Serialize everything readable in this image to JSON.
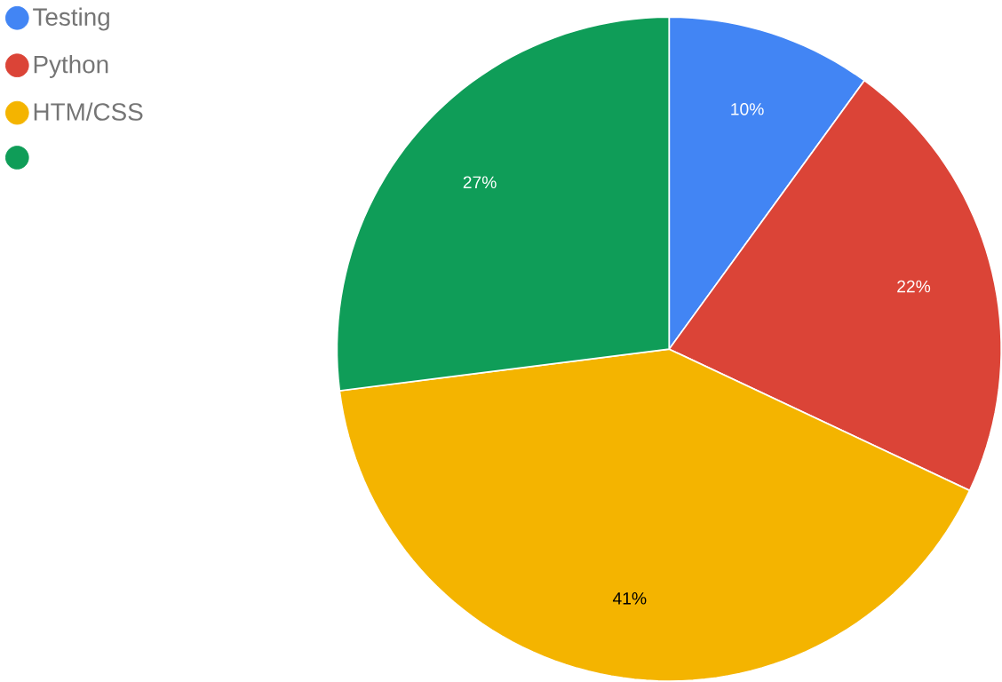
{
  "chart_data": {
    "type": "pie",
    "categories": [
      "Testing",
      "Python",
      "HTM/CSS",
      null
    ],
    "values": [
      10,
      22,
      41,
      27
    ],
    "colors": [
      "#4285f4",
      "#db4437",
      "#f4b400",
      "#0f9d58"
    ],
    "value_labels": [
      "10%",
      "22%",
      "41%",
      "27%"
    ],
    "legend": "top left"
  }
}
